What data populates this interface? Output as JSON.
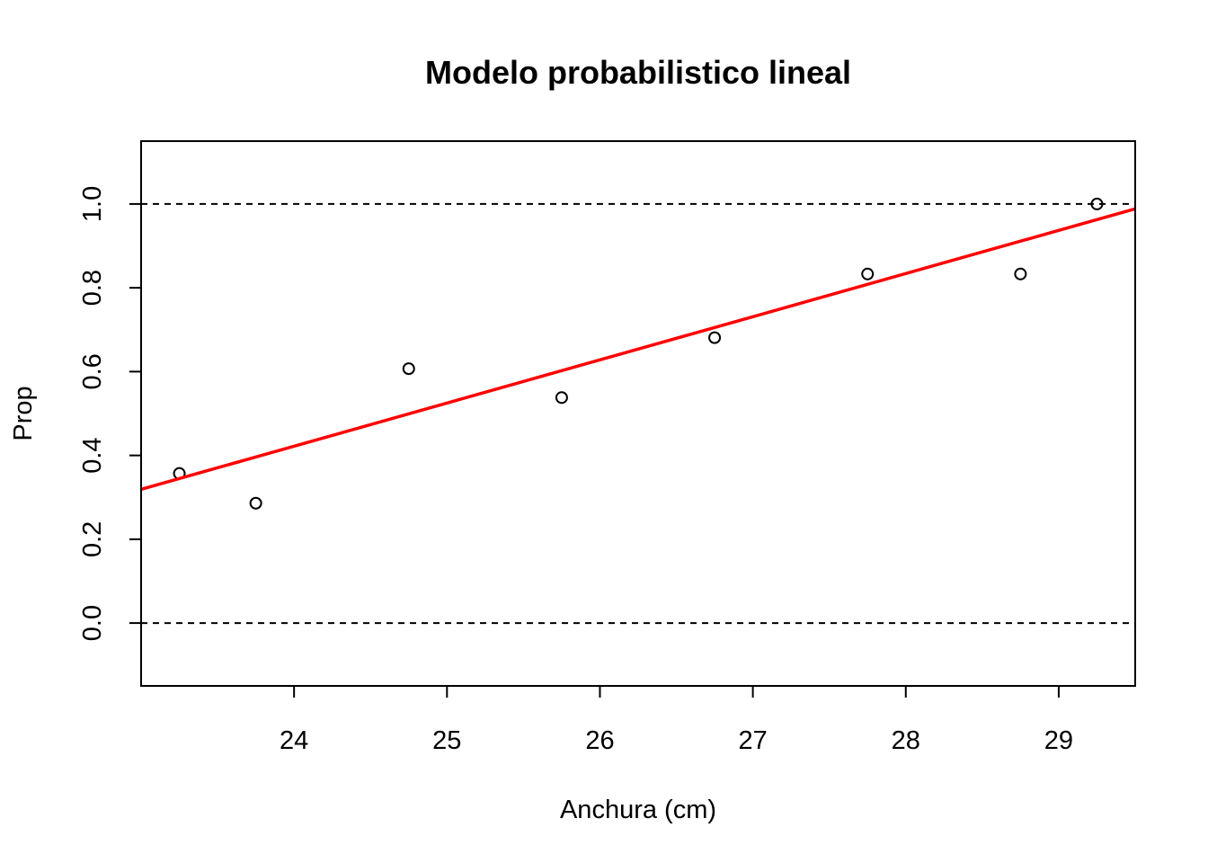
{
  "chart_data": {
    "type": "scatter",
    "title": "Modelo probabilistico lineal",
    "xlabel": "Anchura (cm)",
    "ylabel": "Prop",
    "xlim": [
      23.0,
      29.5
    ],
    "ylim": [
      -0.15,
      1.15
    ],
    "x_ticks": [
      24,
      25,
      26,
      27,
      28,
      29
    ],
    "x_tick_labels": [
      "24",
      "25",
      "26",
      "27",
      "28",
      "29"
    ],
    "y_ticks": [
      0.0,
      0.2,
      0.4,
      0.6,
      0.8,
      1.0
    ],
    "y_tick_labels": [
      "0.0",
      "0.2",
      "0.4",
      "0.6",
      "0.8",
      "1.0"
    ],
    "grid": false,
    "series": [
      {
        "type": "scatter",
        "marker": "open-circle",
        "color": "#000000",
        "x": [
          23.25,
          23.75,
          24.75,
          25.75,
          26.75,
          27.75,
          28.75,
          29.25
        ],
        "y": [
          0.357,
          0.286,
          0.607,
          0.538,
          0.681,
          0.833,
          0.833,
          1.0
        ]
      },
      {
        "type": "line",
        "color": "#ff0000",
        "intercept": -2.05,
        "slope": 0.103
      }
    ],
    "reference_lines": [
      {
        "y": 0.0,
        "style": "dashed",
        "color": "#000000"
      },
      {
        "y": 1.0,
        "style": "dashed",
        "color": "#000000"
      }
    ]
  }
}
